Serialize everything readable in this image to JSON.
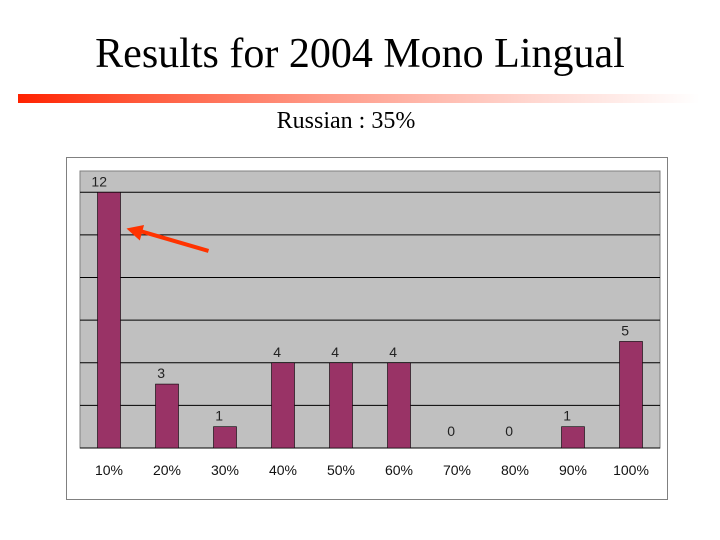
{
  "slide": {
    "title": "Results for 2004 Mono Lingual",
    "subtitle": "Russian : 35%"
  },
  "colors": {
    "bar": "#993366",
    "plot_background": "#c0c0c0",
    "gridline": "#000000",
    "arrow": "#ff3300",
    "title_rule": "#ff2200"
  },
  "chart_data": {
    "type": "bar",
    "categories": [
      "10%",
      "20%",
      "30%",
      "40%",
      "50%",
      "60%",
      "70%",
      "80%",
      "90%",
      "100%"
    ],
    "values": [
      12,
      3,
      1,
      4,
      4,
      4,
      0,
      0,
      1,
      5
    ],
    "data_labels": [
      "12",
      "3",
      "1",
      "4",
      "4",
      "4",
      "0",
      "0",
      "1",
      "5"
    ],
    "ylim": [
      0,
      13
    ],
    "grid": true,
    "legend": "none",
    "annotation": "arrow-pointing-to-first-bar"
  }
}
